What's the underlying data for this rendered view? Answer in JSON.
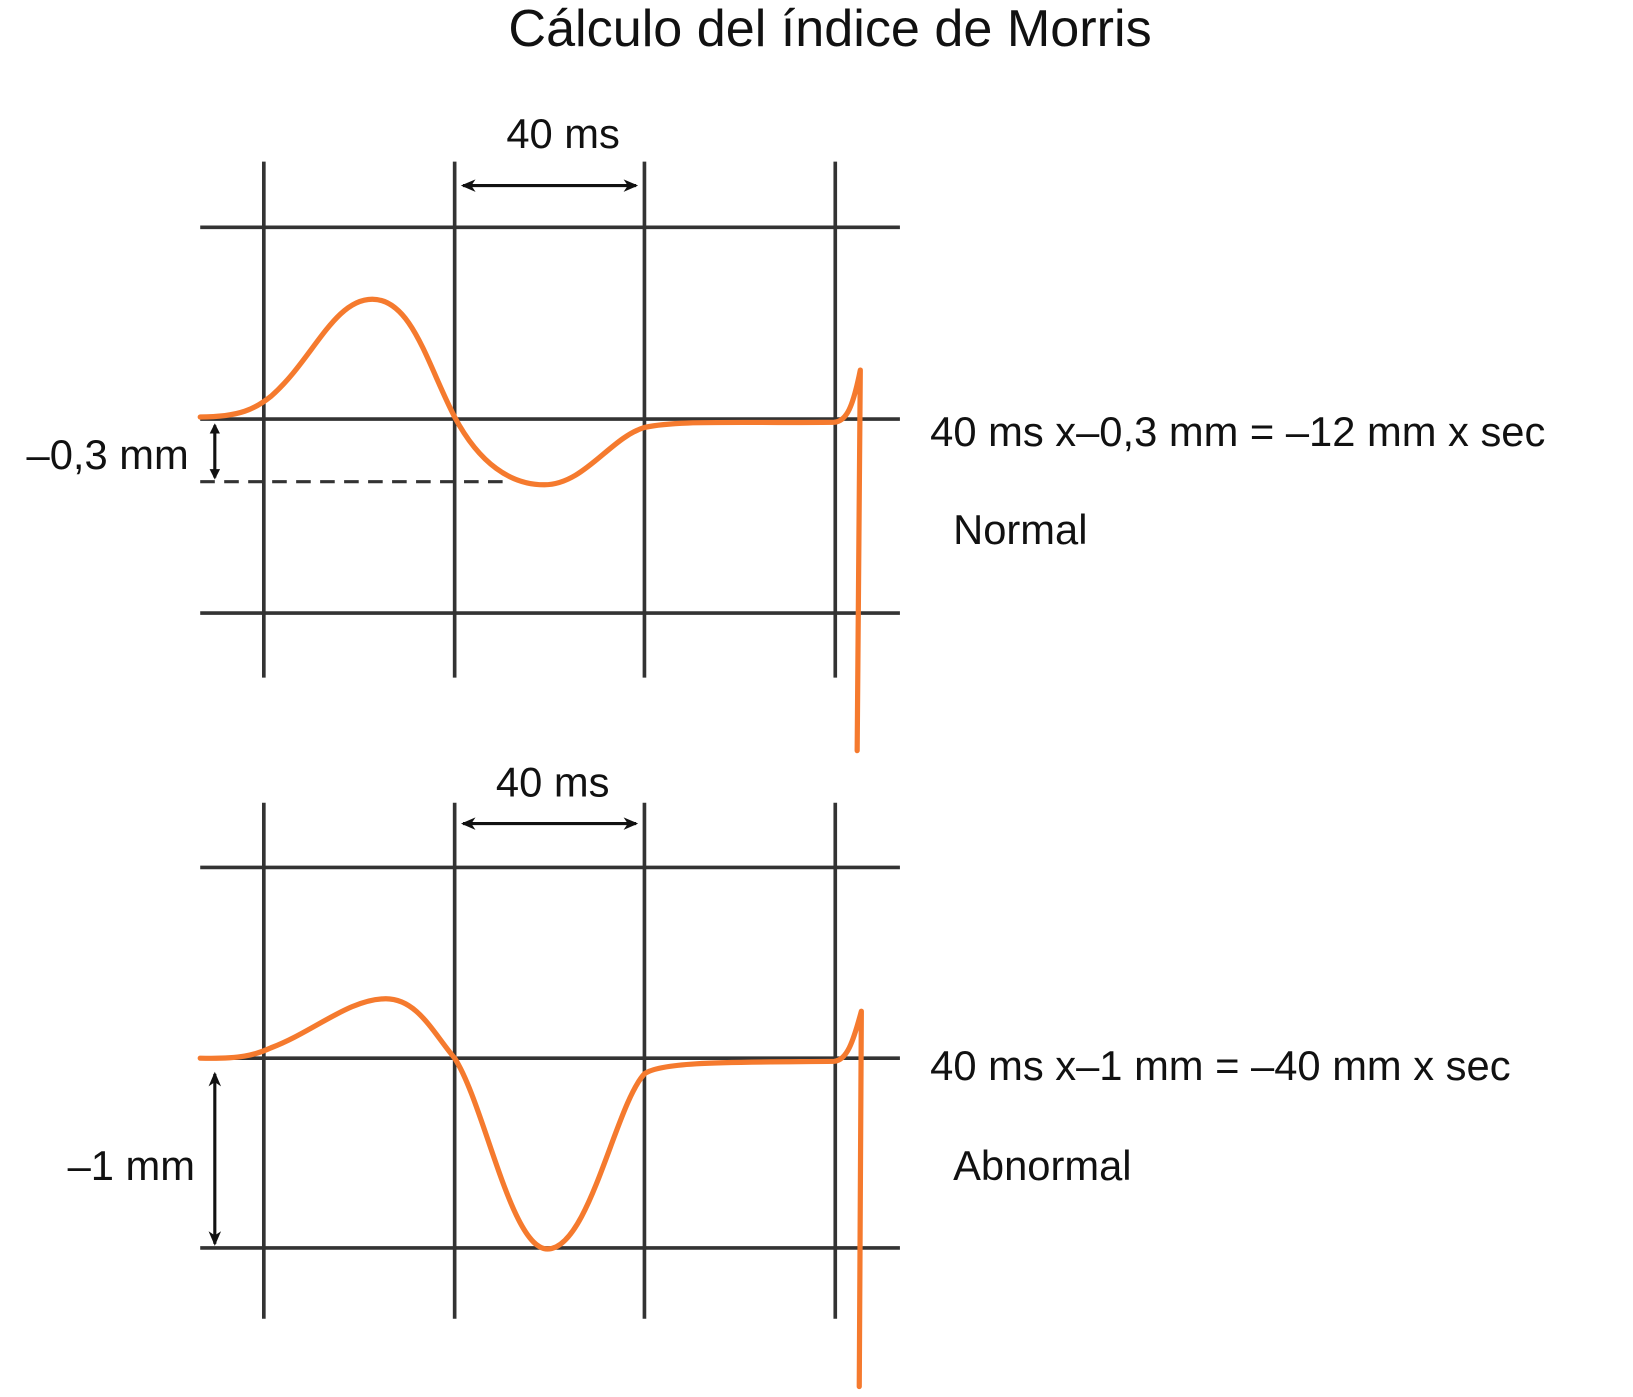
{
  "title": "Cálculo del índice de Morris",
  "colors": {
    "waveform": "#f57a2e",
    "grid": "#333333"
  },
  "panels": [
    {
      "interval_label": "40 ms",
      "depth_label": "–0,3 mm",
      "formula": "40 ms x–0,3 mm = –12 mm x sec",
      "classification": "Normal"
    },
    {
      "interval_label": "40 ms",
      "depth_label": "–1 mm",
      "formula": "40 ms x–1 mm = –40 mm x sec",
      "classification": "Abnormal"
    }
  ]
}
